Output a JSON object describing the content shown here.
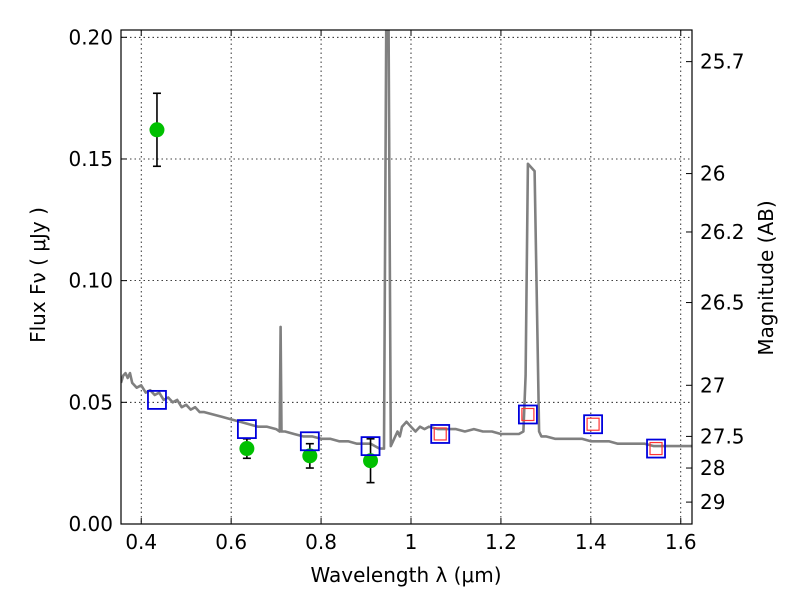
{
  "chart_data": {
    "type": "scatter",
    "xlabel": "Wavelength  λ (μm)",
    "ylabel": "Flux  Fν  ( μJy )",
    "ylabel_right": "Magnitude (AB)",
    "xlim": [
      0.355,
      1.625
    ],
    "ylim": [
      0.0,
      0.203
    ],
    "grid": true,
    "x_ticks": [
      0.4,
      0.6,
      0.8,
      1.0,
      1.2,
      1.4,
      1.6
    ],
    "x_tick_labels": [
      "0.4",
      "0.6",
      "0.8",
      "1",
      "1.2",
      "1.4",
      "1.6"
    ],
    "y_ticks": [
      0.0,
      0.05,
      0.1,
      0.15,
      0.2
    ],
    "y_tick_labels": [
      "0.00",
      "0.05",
      "0.10",
      "0.15",
      "0.20"
    ],
    "right_ticks": [
      {
        "label": "25.7",
        "flux": 0.19
      },
      {
        "label": "26",
        "flux": 0.144
      },
      {
        "label": "26.2",
        "flux": 0.12
      },
      {
        "label": "26.5",
        "flux": 0.091
      },
      {
        "label": "27",
        "flux": 0.057
      },
      {
        "label": "27.5",
        "flux": 0.036
      },
      {
        "label": "28",
        "flux": 0.023
      },
      {
        "label": "29",
        "flux": 0.009
      }
    ],
    "series": [
      {
        "kind": "line",
        "color": "#808080",
        "points": [
          [
            0.355,
            0.058
          ],
          [
            0.36,
            0.061
          ],
          [
            0.365,
            0.062
          ],
          [
            0.37,
            0.06
          ],
          [
            0.375,
            0.062
          ],
          [
            0.38,
            0.058
          ],
          [
            0.39,
            0.056
          ],
          [
            0.4,
            0.057
          ],
          [
            0.41,
            0.054
          ],
          [
            0.42,
            0.055
          ],
          [
            0.43,
            0.053
          ],
          [
            0.44,
            0.054
          ],
          [
            0.45,
            0.051
          ],
          [
            0.46,
            0.052
          ],
          [
            0.47,
            0.05
          ],
          [
            0.48,
            0.051
          ],
          [
            0.49,
            0.048
          ],
          [
            0.5,
            0.049
          ],
          [
            0.51,
            0.047
          ],
          [
            0.52,
            0.048
          ],
          [
            0.53,
            0.046
          ],
          [
            0.54,
            0.046
          ],
          [
            0.56,
            0.045
          ],
          [
            0.58,
            0.044
          ],
          [
            0.6,
            0.043
          ],
          [
            0.62,
            0.042
          ],
          [
            0.64,
            0.041
          ],
          [
            0.66,
            0.04
          ],
          [
            0.68,
            0.04
          ],
          [
            0.7,
            0.039
          ],
          [
            0.708,
            0.038
          ],
          [
            0.71,
            0.081
          ],
          [
            0.712,
            0.038
          ],
          [
            0.72,
            0.038
          ],
          [
            0.74,
            0.037
          ],
          [
            0.76,
            0.036
          ],
          [
            0.78,
            0.036
          ],
          [
            0.8,
            0.035
          ],
          [
            0.82,
            0.035
          ],
          [
            0.84,
            0.034
          ],
          [
            0.86,
            0.034
          ],
          [
            0.88,
            0.033
          ],
          [
            0.9,
            0.033
          ],
          [
            0.91,
            0.033
          ],
          [
            0.92,
            0.032
          ],
          [
            0.93,
            0.031
          ],
          [
            0.94,
            0.031
          ],
          [
            0.945,
            0.21
          ],
          [
            0.95,
            0.21
          ],
          [
            0.955,
            0.032
          ],
          [
            0.96,
            0.034
          ],
          [
            0.97,
            0.038
          ],
          [
            0.975,
            0.036
          ],
          [
            0.98,
            0.04
          ],
          [
            0.99,
            0.042
          ],
          [
            1.0,
            0.04
          ],
          [
            1.01,
            0.038
          ],
          [
            1.02,
            0.04
          ],
          [
            1.03,
            0.039
          ],
          [
            1.04,
            0.04
          ],
          [
            1.06,
            0.039
          ],
          [
            1.08,
            0.039
          ],
          [
            1.1,
            0.039
          ],
          [
            1.12,
            0.038
          ],
          [
            1.14,
            0.039
          ],
          [
            1.16,
            0.038
          ],
          [
            1.18,
            0.038
          ],
          [
            1.2,
            0.037
          ],
          [
            1.22,
            0.037
          ],
          [
            1.24,
            0.037
          ],
          [
            1.25,
            0.038
          ],
          [
            1.255,
            0.061
          ],
          [
            1.26,
            0.148
          ],
          [
            1.275,
            0.145
          ],
          [
            1.285,
            0.038
          ],
          [
            1.29,
            0.036
          ],
          [
            1.3,
            0.036
          ],
          [
            1.32,
            0.035
          ],
          [
            1.34,
            0.035
          ],
          [
            1.36,
            0.035
          ],
          [
            1.38,
            0.035
          ],
          [
            1.4,
            0.034
          ],
          [
            1.42,
            0.034
          ],
          [
            1.44,
            0.034
          ],
          [
            1.46,
            0.033
          ],
          [
            1.48,
            0.033
          ],
          [
            1.5,
            0.033
          ],
          [
            1.52,
            0.033
          ],
          [
            1.54,
            0.032
          ],
          [
            1.56,
            0.032
          ],
          [
            1.58,
            0.032
          ],
          [
            1.6,
            0.032
          ],
          [
            1.625,
            0.032
          ]
        ]
      },
      {
        "kind": "errorbar",
        "color": "#00c000",
        "points": [
          {
            "x": 0.435,
            "y": 0.162,
            "err": 0.015
          },
          {
            "x": 0.635,
            "y": 0.031,
            "err": 0.004
          },
          {
            "x": 0.775,
            "y": 0.028,
            "err": 0.005
          },
          {
            "x": 0.91,
            "y": 0.026,
            "err": 0.009
          }
        ]
      },
      {
        "kind": "square",
        "color": "#0000dd",
        "points": [
          [
            0.435,
            0.051
          ],
          [
            0.635,
            0.039
          ],
          [
            0.775,
            0.034
          ],
          [
            0.91,
            0.032
          ],
          [
            1.065,
            0.037
          ],
          [
            1.26,
            0.045
          ],
          [
            1.405,
            0.041
          ],
          [
            1.545,
            0.031
          ]
        ]
      },
      {
        "kind": "square",
        "color": "#ff3333",
        "points": [
          [
            1.065,
            0.037
          ],
          [
            1.26,
            0.045
          ],
          [
            1.405,
            0.041
          ],
          [
            1.545,
            0.031
          ]
        ]
      }
    ]
  }
}
